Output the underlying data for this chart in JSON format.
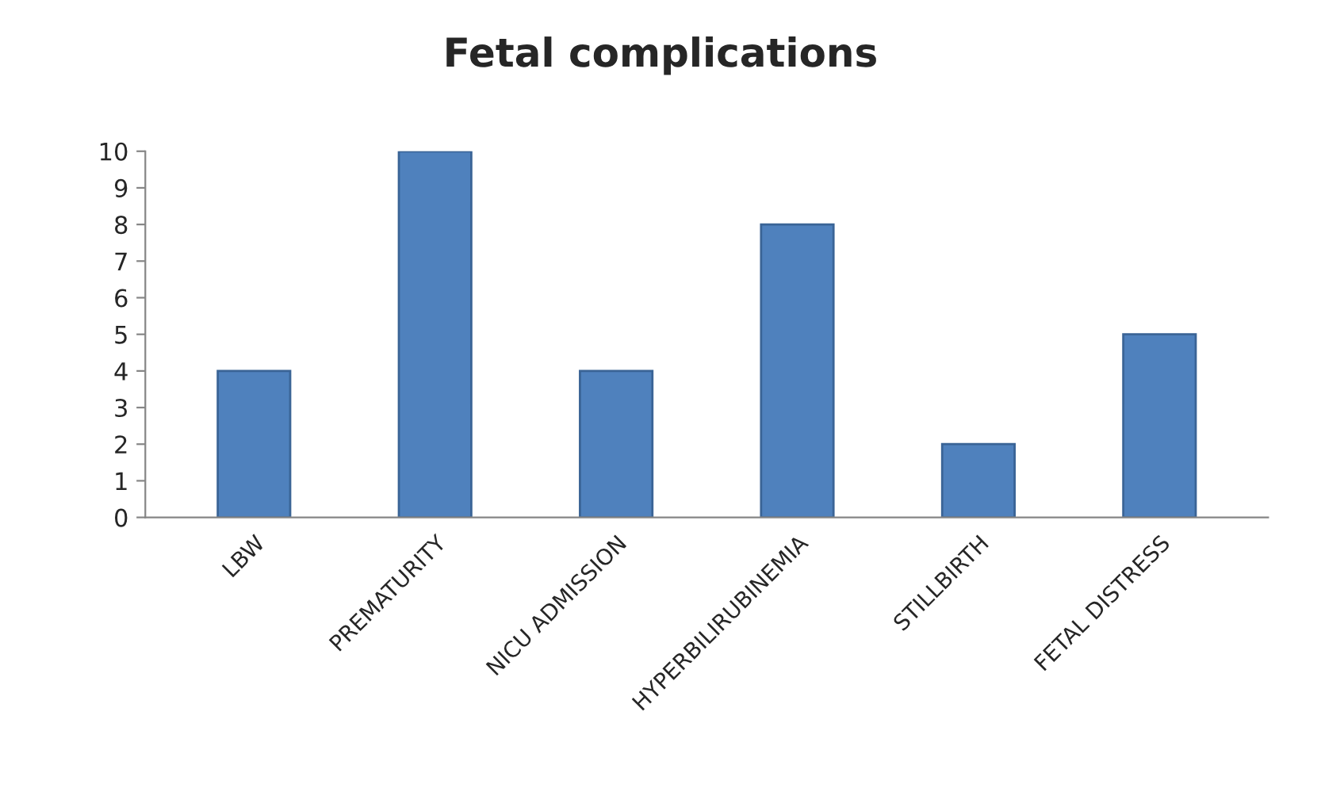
{
  "chart_data": {
    "type": "bar",
    "title": "Fetal complications",
    "categories": [
      "LBW",
      "PREMATURITY",
      "NICU ADMISSION",
      "HYPERBILIRUBINEMIA",
      "STILLBIRTH",
      "FETAL DISTRESS"
    ],
    "values": [
      4,
      10,
      4,
      8,
      2,
      5
    ],
    "color": "#4f81bd",
    "ylim": [
      0,
      10
    ],
    "yticks": [
      0,
      1,
      2,
      3,
      4,
      5,
      6,
      7,
      8,
      9,
      10
    ],
    "grid": false
  }
}
